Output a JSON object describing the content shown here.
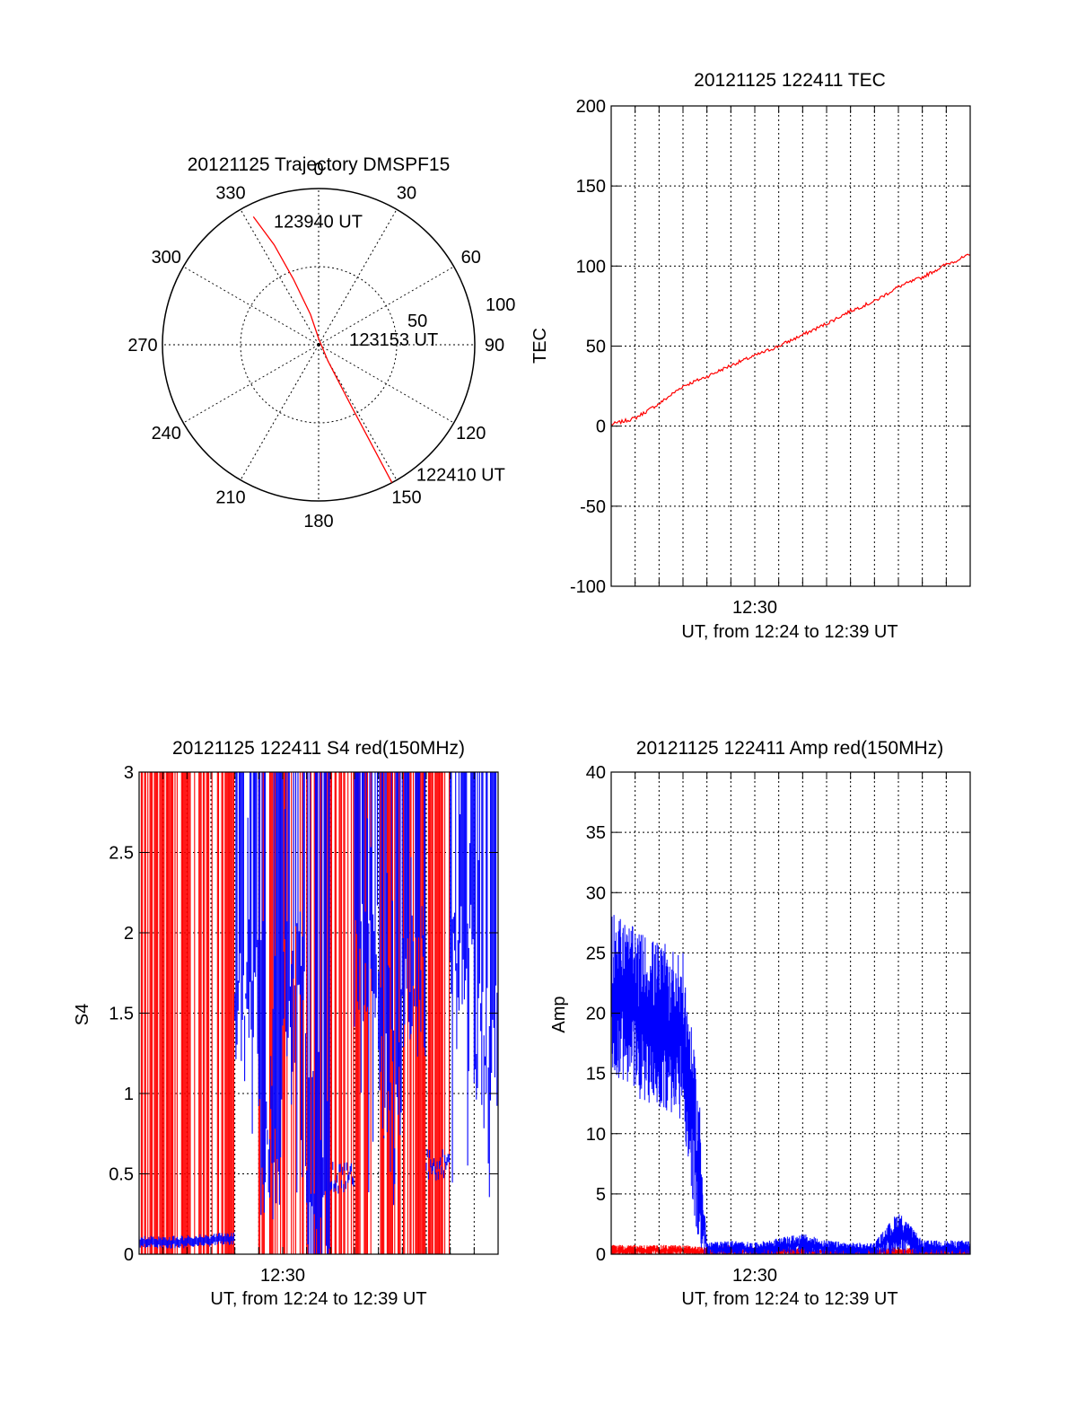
{
  "chart_data": [
    {
      "type": "polar",
      "title": "20121125 Trajectory DMSPF15",
      "angle_labels": [
        "0",
        "30",
        "60",
        "90",
        "120",
        "150",
        "180",
        "210",
        "240",
        "270",
        "300",
        "330"
      ],
      "radius_labels": [
        "50",
        "100"
      ],
      "radius_max": 100,
      "grid": true,
      "series": [
        {
          "color": "#ff0000",
          "points": [
            {
              "az": 333,
              "r": 92
            },
            {
              "az": 336,
              "r": 70
            },
            {
              "az": 339,
              "r": 45
            },
            {
              "az": 345,
              "r": 20
            },
            {
              "az": 360,
              "r": 4
            },
            {
              "az": 150,
              "r": 12
            },
            {
              "az": 152,
              "r": 45
            },
            {
              "az": 152,
              "r": 75
            },
            {
              "az": 152,
              "r": 100
            }
          ]
        }
      ],
      "annotations": [
        {
          "text": "123940 UT",
          "az": 340,
          "r": 84
        },
        {
          "text": "123153 UT",
          "az": 80,
          "r": 20
        },
        {
          "text": "122410 UT",
          "az": 143,
          "r": 104
        }
      ]
    },
    {
      "type": "line",
      "title": "20121125 122411 TEC",
      "xlabel": "UT, from 12:24 to 12:39 UT",
      "ylabel": "TEC",
      "xlim": [
        "12:24",
        "12:39"
      ],
      "ylim": [
        -100,
        200
      ],
      "yticks": [
        -100,
        -50,
        0,
        50,
        100,
        150,
        200
      ],
      "xtick_labels": [
        {
          "t": "12:30",
          "label": "12:30"
        }
      ],
      "grid": true,
      "series": [
        {
          "color": "#ff0000",
          "t": [
            "12:24",
            "12:25",
            "12:26",
            "12:27",
            "12:28",
            "12:29",
            "12:30",
            "12:31",
            "12:32",
            "12:33",
            "12:34",
            "12:35",
            "12:36",
            "12:37",
            "12:38",
            "12:39"
          ],
          "values": [
            1,
            5,
            14,
            25,
            31,
            38,
            44,
            50,
            57,
            64,
            72,
            78,
            87,
            93,
            101,
            107
          ]
        }
      ]
    },
    {
      "type": "line",
      "title": "20121125 122411 S4 red(150MHz)",
      "xlabel": "UT, from 12:24 to 12:39 UT",
      "ylabel": "S4",
      "xlim": [
        "12:24",
        "12:39"
      ],
      "ylim": [
        0,
        3
      ],
      "yticks": [
        0,
        0.5,
        1,
        1.5,
        2,
        2.5,
        3
      ],
      "xtick_labels": [
        {
          "t": "12:30",
          "label": "12:30"
        }
      ],
      "grid": true,
      "series": [
        {
          "color": "#0000ff",
          "t": [
            "12:24",
            "12:25",
            "12:26",
            "12:27",
            "12:28",
            "12:29",
            "12:30",
            "12:31",
            "12:32",
            "12:33",
            "12:34",
            "12:35",
            "12:36",
            "12:37",
            "12:38",
            "12:39"
          ],
          "values": [
            0.1,
            0.1,
            0.11,
            0.12,
            2.8,
            1.8,
            2.9,
            1.2,
            0.5,
            3,
            2.2,
            2.8,
            0.58,
            3,
            2.5,
            3
          ]
        },
        {
          "color": "#ff0000",
          "t": [
            "12:24",
            "12:25",
            "12:26",
            "12:27",
            "12:28",
            "12:29",
            "12:30",
            "12:31",
            "12:32",
            "12:33",
            "12:34",
            "12:35",
            "12:36",
            "12:37",
            "12:38",
            "12:39"
          ],
          "values": [
            3,
            3,
            3,
            3,
            0,
            3,
            3,
            3,
            3,
            3,
            3,
            3,
            3,
            0,
            0,
            0
          ]
        }
      ]
    },
    {
      "type": "line",
      "title": "20121125 122411 Amp red(150MHz)",
      "xlabel": "UT, from 12:24 to 12:39 UT",
      "ylabel": "Amp",
      "xlim": [
        "12:24",
        "12:39"
      ],
      "ylim": [
        0,
        40
      ],
      "yticks": [
        0,
        5,
        10,
        15,
        20,
        25,
        30,
        35,
        40
      ],
      "xtick_labels": [
        {
          "t": "12:30",
          "label": "12:30"
        }
      ],
      "grid": true,
      "series": [
        {
          "color": "#0000ff",
          "t": [
            "12:24",
            "12:25",
            "12:26",
            "12:27",
            "12:28",
            "12:29",
            "12:30",
            "12:31",
            "12:32",
            "12:33",
            "12:34",
            "12:35",
            "12:36",
            "12:37",
            "12:38",
            "12:39"
          ],
          "values": [
            22,
            20,
            19,
            18,
            0.4,
            0.5,
            0.4,
            0.6,
            0.8,
            0.5,
            0.4,
            0.4,
            1.8,
            0.5,
            0.5,
            0.5
          ]
        },
        {
          "color": "#ff0000",
          "t": [
            "12:24",
            "12:25",
            "12:26",
            "12:27",
            "12:28",
            "12:29",
            "12:30",
            "12:31",
            "12:32",
            "12:33",
            "12:34",
            "12:35",
            "12:36",
            "12:37",
            "12:38",
            "12:39"
          ],
          "values": [
            0.3,
            0.3,
            0.3,
            0.3,
            0.2,
            0.3,
            0.2,
            0.2,
            0.2,
            0.2,
            0.2,
            0.2,
            0.2,
            0.2,
            0.2,
            0.2
          ]
        }
      ]
    }
  ]
}
